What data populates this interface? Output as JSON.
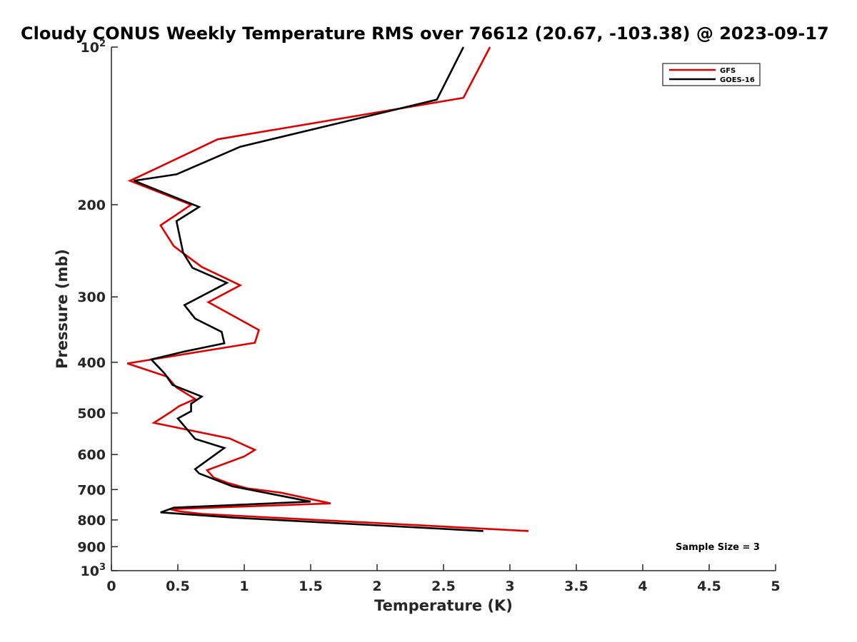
{
  "chart_data": {
    "type": "line",
    "title": "Cloudy CONUS Weekly Temperature RMS over 76612 (20.67, -103.38) @ 2023-09-17",
    "xlabel": "Temperature (K)",
    "ylabel": "Pressure (mb)",
    "xlim": [
      0,
      5
    ],
    "ylim": [
      100,
      1000
    ],
    "y_scale": "log",
    "y_reversed": true,
    "x_ticks": [
      "0",
      "0.5",
      "1",
      "1.5",
      "2",
      "2.5",
      "3",
      "3.5",
      "4",
      "4.5",
      "5"
    ],
    "y_ticks": [
      {
        "value": 100,
        "base": "10",
        "exp": "2"
      },
      {
        "value": 200,
        "label": "200"
      },
      {
        "value": 300,
        "label": "300"
      },
      {
        "value": 400,
        "label": "400"
      },
      {
        "value": 500,
        "label": "500"
      },
      {
        "value": 600,
        "label": "600"
      },
      {
        "value": 700,
        "label": "700"
      },
      {
        "value": 800,
        "label": "800"
      },
      {
        "value": 900,
        "label": "900"
      },
      {
        "value": 1000,
        "base": "10",
        "exp": "3"
      }
    ],
    "grid": false,
    "legend_position": "top-right",
    "annotation": "Sample Size = 3",
    "series": [
      {
        "name": "GFS",
        "color": "#e00000",
        "points": [
          [
            2.85,
            100
          ],
          [
            2.65,
            125
          ],
          [
            0.8,
            150
          ],
          [
            0.35,
            170
          ],
          [
            0.14,
            180
          ],
          [
            0.6,
            200
          ],
          [
            0.37,
            219
          ],
          [
            0.47,
            240
          ],
          [
            0.68,
            263
          ],
          [
            0.97,
            285
          ],
          [
            0.73,
            307
          ],
          [
            1.11,
            347
          ],
          [
            1.08,
            367
          ],
          [
            0.12,
            402
          ],
          [
            0.42,
            426
          ],
          [
            0.49,
            447
          ],
          [
            0.63,
            470
          ],
          [
            0.51,
            485
          ],
          [
            0.44,
            499
          ],
          [
            0.32,
            522
          ],
          [
            0.89,
            559
          ],
          [
            1.08,
            588
          ],
          [
            1.0,
            605
          ],
          [
            0.72,
            643
          ],
          [
            0.77,
            664
          ],
          [
            0.87,
            679
          ],
          [
            1.02,
            696
          ],
          [
            1.28,
            710
          ],
          [
            1.65,
            744
          ],
          [
            0.44,
            763
          ],
          [
            0.52,
            771
          ],
          [
            0.68,
            779
          ],
          [
            3.14,
            840
          ]
        ]
      },
      {
        "name": "GOES-16",
        "color": "#000000",
        "points": [
          [
            2.65,
            100
          ],
          [
            2.45,
            126
          ],
          [
            0.97,
            155
          ],
          [
            0.49,
            175
          ],
          [
            0.17,
            180
          ],
          [
            0.66,
            202
          ],
          [
            0.49,
            215
          ],
          [
            0.54,
            247
          ],
          [
            0.61,
            264
          ],
          [
            0.87,
            282
          ],
          [
            0.55,
            311
          ],
          [
            0.63,
            330
          ],
          [
            0.83,
            350
          ],
          [
            0.85,
            368
          ],
          [
            0.54,
            382
          ],
          [
            0.3,
            395
          ],
          [
            0.4,
            420
          ],
          [
            0.46,
            442
          ],
          [
            0.68,
            465
          ],
          [
            0.6,
            480
          ],
          [
            0.6,
            496
          ],
          [
            0.5,
            512
          ],
          [
            0.63,
            560
          ],
          [
            0.85,
            583
          ],
          [
            0.77,
            603
          ],
          [
            0.63,
            640
          ],
          [
            0.66,
            652
          ],
          [
            0.91,
            690
          ],
          [
            1.5,
            738
          ],
          [
            0.47,
            758
          ],
          [
            0.37,
            774
          ],
          [
            0.92,
            792
          ],
          [
            2.8,
            840
          ]
        ]
      }
    ]
  }
}
